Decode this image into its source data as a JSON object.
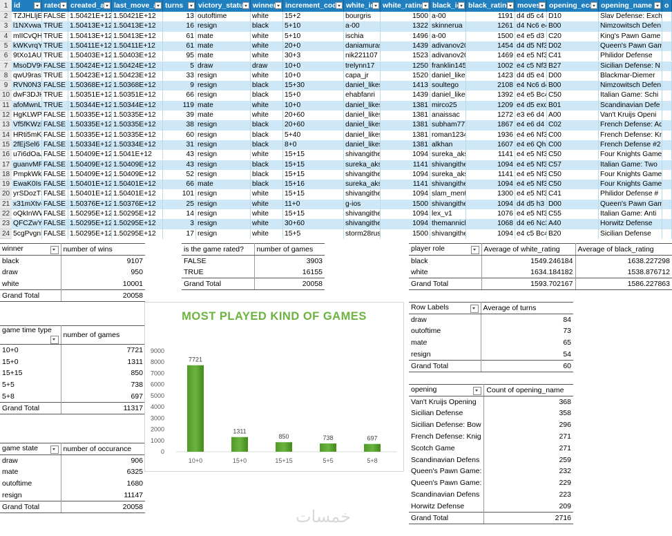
{
  "sheet": {
    "columns": [
      {
        "label": "id",
        "w": 44
      },
      {
        "label": "rated",
        "w": 38
      },
      {
        "label": "created_at",
        "w": 63
      },
      {
        "label": "last_move_at",
        "w": 74
      },
      {
        "label": "turns",
        "w": 48
      },
      {
        "label": "victory_status",
        "w": 79
      },
      {
        "label": "winner",
        "w": 47
      },
      {
        "label": "increment_code",
        "w": 88
      },
      {
        "label": "white_id",
        "w": 53
      },
      {
        "label": "white_rating",
        "w": 72
      },
      {
        "label": "black_id",
        "w": 52
      },
      {
        "label": "black_rating",
        "w": 71
      },
      {
        "label": "moves",
        "w": 46
      },
      {
        "label": "opening_eco",
        "w": 75
      },
      {
        "label": "opening_name",
        "w": 92
      },
      {
        "label": "o",
        "w": 14
      }
    ],
    "row_numbers": [
      "1",
      "2",
      "3",
      "4",
      "5",
      "6",
      "7",
      "8",
      "9",
      "10",
      "11",
      "12",
      "13",
      "14",
      "15",
      "16",
      "17",
      "18",
      "19",
      "20",
      "21",
      "22",
      "23",
      "24"
    ],
    "rows": [
      [
        "TZJHLljE",
        "FALSE",
        "1.50421E+12",
        "1.50421E+12",
        "13",
        "outoftime",
        "white",
        "15+2",
        "bourgris",
        "1500",
        "a-00",
        "1191",
        "d4 d5 c4 c",
        "D10",
        "Slav Defense: Exch",
        ""
      ],
      [
        "l1NXvwaE",
        "TRUE",
        "1.50413E+12",
        "1.50413E+12",
        "16",
        "resign",
        "black",
        "5+10",
        "a-00",
        "1322",
        "skinnerua",
        "1261",
        "d4 Nc6 e4",
        "B00",
        "Nimzowitsch Defen",
        ""
      ],
      [
        "mIICvQHh",
        "TRUE",
        "1.50413E+12",
        "1.50413E+12",
        "61",
        "mate",
        "white",
        "5+10",
        "ischia",
        "1496",
        "a-00",
        "1500",
        "e4 e5 d3 d",
        "C20",
        "King's Pawn Game",
        ""
      ],
      [
        "kWKvrqYL",
        "TRUE",
        "1.50411E+12",
        "1.50411E+12",
        "61",
        "mate",
        "white",
        "20+0",
        "daniamuras",
        "1439",
        "adivanov20",
        "1454",
        "d4 d5 Nf3",
        "D02",
        "Queen's Pawn Gam",
        ""
      ],
      [
        "9tXo1AUZ",
        "TRUE",
        "1.50403E+12",
        "1.50403E+12",
        "95",
        "mate",
        "white",
        "30+3",
        "nik221107",
        "1523",
        "adivanov20",
        "1469",
        "e4 e5 Nf3",
        "C41",
        "Philidor Defense",
        ""
      ],
      [
        "MsoDV9w",
        "FALSE",
        "1.50424E+12",
        "1.50424E+12",
        "5",
        "draw",
        "draw",
        "10+0",
        "trelynn17",
        "1250",
        "franklin145",
        "1002",
        "e4 c5 Nf3",
        "B27",
        "Sicilian Defense: N",
        ""
      ],
      [
        "qwU9rasv",
        "TRUE",
        "1.50423E+12",
        "1.50423E+12",
        "33",
        "resign",
        "white",
        "10+0",
        "capa_jr",
        "1520",
        "daniel_likes",
        "1423",
        "d4 d5 e4 d",
        "D00",
        "Blackmar-Diemer",
        ""
      ],
      [
        "RVN0N3VI",
        "FALSE",
        "1.50368E+12",
        "1.50368E+12",
        "9",
        "resign",
        "black",
        "15+30",
        "daniel_likes",
        "1413",
        "soultego",
        "2108",
        "e4 Nc6 d4",
        "B00",
        "Nimzowitsch Defen",
        ""
      ],
      [
        "dwF3DJHC",
        "TRUE",
        "1.50351E+12",
        "1.50351E+12",
        "66",
        "resign",
        "black",
        "15+0",
        "ehabfanri",
        "1439",
        "daniel_likes",
        "1392",
        "e4 e5 Bc4",
        "C50",
        "Italian Game: Schi",
        ""
      ],
      [
        "afoMwnLg",
        "TRUE",
        "1.50344E+12",
        "1.50344E+12",
        "119",
        "mate",
        "white",
        "10+0",
        "daniel_likes",
        "1381",
        "mirco25",
        "1209",
        "e4 d5 exd5",
        "B01",
        "Scandinavian Defe",
        ""
      ],
      [
        "HgKLWPsz",
        "FALSE",
        "1.50335E+12",
        "1.50335E+12",
        "39",
        "mate",
        "white",
        "20+60",
        "daniel_likes",
        "1381",
        "anaissac",
        "1272",
        "e3 e6 d4 d",
        "A00",
        "Van't Kruijs Openi",
        ""
      ],
      [
        "Vf5fKWzl",
        "FALSE",
        "1.50335E+12",
        "1.50335E+12",
        "38",
        "resign",
        "black",
        "20+60",
        "daniel_likes",
        "1381",
        "subham777",
        "1867",
        "e4 e6 d4 d",
        "C02",
        "French Defense: Ad",
        ""
      ],
      [
        "HRti5mKv",
        "FALSE",
        "1.50335E+12",
        "1.50335E+12",
        "60",
        "resign",
        "black",
        "5+40",
        "daniel_likes",
        "1381",
        "roman1234",
        "1936",
        "e4 e6 Nf3",
        "C00",
        "French Defense: Kn",
        ""
      ],
      [
        "2fEjSel6",
        "FALSE",
        "1.50334E+12",
        "1.50334E+12",
        "31",
        "resign",
        "black",
        "8+0",
        "daniel_likes",
        "1381",
        "alkhan",
        "1607",
        "e4 e6 Qh5",
        "C00",
        "French Defense #2",
        ""
      ],
      [
        "u7i6dOaJ",
        "FALSE",
        "1.50409E+12",
        "1.5041E+12",
        "43",
        "resign",
        "white",
        "15+15",
        "shivangithe",
        "1094",
        "sureka_aks",
        "1141",
        "e4 e5 Nf3",
        "C50",
        "Four Knights Game",
        ""
      ],
      [
        "guanvMR5",
        "FALSE",
        "1.50409E+12",
        "1.50409E+12",
        "43",
        "resign",
        "black",
        "15+15",
        "sureka_aksl",
        "1141",
        "shivangithe",
        "1094",
        "e4 e5 Nf3",
        "C57",
        "Italian Game: Two",
        ""
      ],
      [
        "PmpkWkn",
        "FALSE",
        "1.50409E+12",
        "1.50409E+12",
        "52",
        "resign",
        "black",
        "15+15",
        "shivangithe",
        "1094",
        "sureka_aks",
        "1141",
        "e4 e5 Nf3",
        "C50",
        "Four Knights Game",
        ""
      ],
      [
        "EwaK0IsE",
        "FALSE",
        "1.50401E+12",
        "1.50401E+12",
        "66",
        "mate",
        "black",
        "15+16",
        "sureka_aksl",
        "1141",
        "shivangithe",
        "1094",
        "e4 e5 Nf3",
        "C50",
        "Four Knights Game",
        ""
      ],
      [
        "yrSDozT3",
        "FALSE",
        "1.50401E+12",
        "1.50401E+12",
        "101",
        "resign",
        "white",
        "15+15",
        "shivangithe",
        "1094",
        "slam_ment",
        "1300",
        "e4 e5 Nf3",
        "C41",
        "Philidor Defense #",
        ""
      ],
      [
        "x31mXtvc",
        "FALSE",
        "1.50376E+12",
        "1.50376E+12",
        "25",
        "resign",
        "white",
        "11+0",
        "g-ios",
        "1500",
        "shivangithe",
        "1094",
        "d4 d5 h3 N",
        "D00",
        "Queen's Pawn Gam",
        ""
      ],
      [
        "oQkInWW",
        "FALSE",
        "1.50295E+12",
        "1.50295E+12",
        "14",
        "resign",
        "white",
        "15+15",
        "shivangithe",
        "1094",
        "lex_v1",
        "1076",
        "e4 e5 Nf3",
        "C55",
        "Italian Game: Anti",
        ""
      ],
      [
        "QFCZwY1f",
        "FALSE",
        "1.50295E+12",
        "1.50295E+12",
        "3",
        "resign",
        "white",
        "30+60",
        "shivangithe",
        "1094",
        "themannich",
        "1068",
        "d4 e6 Nc3",
        "A40",
        "Horwitz Defense",
        ""
      ],
      [
        "5cgPvgnl",
        "FALSE",
        "1.50295E+12",
        "1.50295E+12",
        "17",
        "resign",
        "white",
        "15+5",
        "storm28rus",
        "1500",
        "shivangithe",
        "1094",
        "e4 c5 Bc4",
        "B20",
        "Sicilian Defense",
        ""
      ]
    ]
  },
  "pivots": {
    "winners": {
      "h1": "winner",
      "h2": "number of wins",
      "rows": [
        [
          "black",
          "9107"
        ],
        [
          "draw",
          "950"
        ],
        [
          "white",
          "10001"
        ]
      ],
      "total": [
        "Grand Total",
        "20058"
      ]
    },
    "rated": {
      "h1": "is the game rated?",
      "h2": "number of games",
      "rows": [
        [
          "FALSE",
          "3903"
        ],
        [
          "TRUE",
          "16155"
        ]
      ],
      "total": [
        "Grand Total",
        "20058"
      ]
    },
    "ratings": {
      "h1": "player role",
      "h2": "Average of white_rating",
      "h3": "Average of black_rating",
      "rows": [
        [
          "black",
          "1549.246184",
          "1638.227298"
        ],
        [
          "white",
          "1634.184182",
          "1538.876712"
        ]
      ],
      "total": [
        "Grand Total",
        "1593.702167",
        "1586.227863"
      ]
    },
    "time_type": {
      "h1": "game time type",
      "h2": "number of games",
      "rows": [
        [
          "10+0",
          "7721"
        ],
        [
          "15+0",
          "1311"
        ],
        [
          "15+15",
          "850"
        ],
        [
          "5+5",
          "738"
        ],
        [
          "5+8",
          "697"
        ]
      ],
      "total": [
        "Grand Total",
        "11317"
      ]
    },
    "turns": {
      "h1": "Row Labels",
      "h2": "Average of turns",
      "rows": [
        [
          "draw",
          "84"
        ],
        [
          "outoftime",
          "73"
        ],
        [
          "mate",
          "65"
        ],
        [
          "resign",
          "54"
        ]
      ],
      "total": [
        "Grand Total",
        "60"
      ]
    },
    "state": {
      "h1": "game state",
      "h2": "number of occurance",
      "rows": [
        [
          "draw",
          "906"
        ],
        [
          "mate",
          "6325"
        ],
        [
          "outoftime",
          "1680"
        ],
        [
          "resign",
          "11147"
        ]
      ],
      "total": [
        "Grand Total",
        "20058"
      ]
    },
    "openings": {
      "h1": "opening",
      "h2": "Count of opening_name",
      "rows": [
        [
          "Van't Kruijs Opening",
          "368"
        ],
        [
          "Sicilian Defense",
          "358"
        ],
        [
          "Sicilian Defense: Bow",
          "296"
        ],
        [
          "French Defense: Knig",
          "271"
        ],
        [
          "Scotch Game",
          "271"
        ],
        [
          "Scandinavian Defens",
          "259"
        ],
        [
          "Queen's Pawn Game:",
          "232"
        ],
        [
          "Queen's Pawn Game:",
          "229"
        ],
        [
          "Scandinavian Defens",
          "223"
        ],
        [
          "Horwitz Defense",
          "209"
        ]
      ],
      "total": [
        "Grand Total",
        "2716"
      ]
    }
  },
  "chart_data": {
    "type": "bar",
    "title": "MOST PLAYED KIND OF GAMES",
    "categories": [
      "10+0",
      "15+0",
      "15+15",
      "5+5",
      "5+8"
    ],
    "values": [
      7721,
      1311,
      850,
      738,
      697
    ],
    "xlabel": "",
    "ylabel": "",
    "ylim": [
      0,
      9000
    ],
    "yticks": [
      0,
      1000,
      2000,
      3000,
      4000,
      5000,
      6000,
      7000,
      8000,
      9000
    ],
    "data_labels": [
      "7721",
      "1311",
      "850",
      "738",
      "697"
    ],
    "grid": false,
    "legend": "none",
    "bar_color": "#6cb33f"
  },
  "watermark": "خمسات"
}
